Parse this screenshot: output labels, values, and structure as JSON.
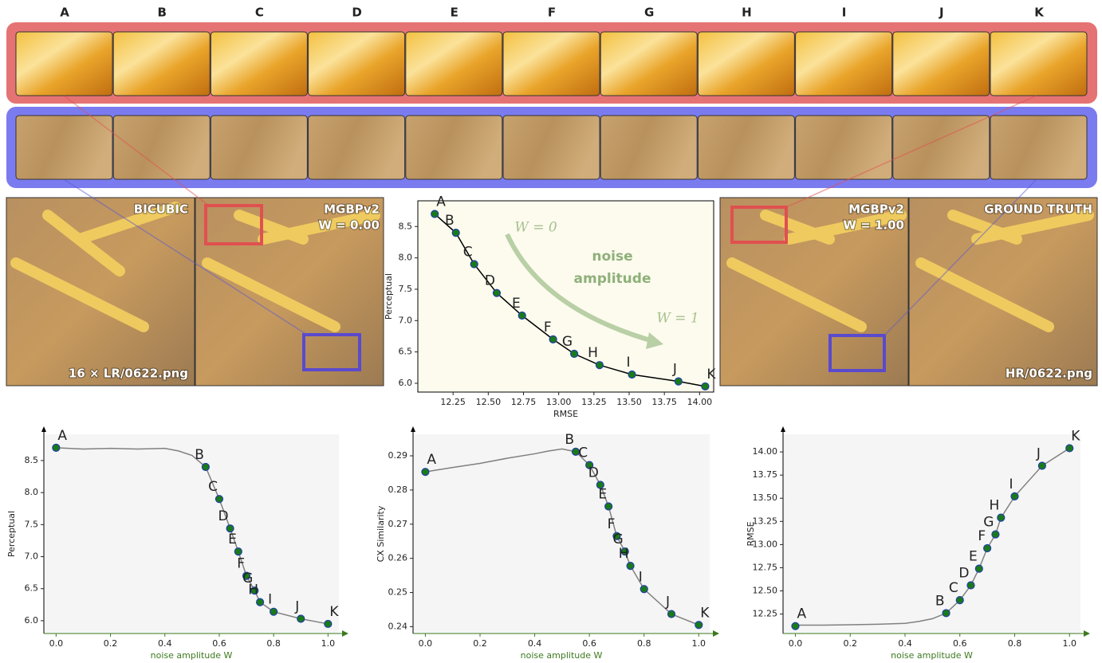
{
  "columns": [
    "A",
    "B",
    "C",
    "D",
    "E",
    "F",
    "G",
    "H",
    "I",
    "J",
    "K"
  ],
  "image_labels": {
    "bicubic": "BICUBIC",
    "lr_file": "16 × LR/0622.png",
    "mgbp_w0": [
      "MGBPv2",
      "W = 0.00"
    ],
    "mgbp_w1": [
      "MGBPv2",
      "W = 1.00"
    ],
    "ground_truth": "GROUND TRUTH",
    "hr_file": "HR/0622.png"
  },
  "chart_data": [
    {
      "type": "line",
      "xlabel": "RMSE",
      "ylabel": "Perceptual",
      "annotations": {
        "w0": "W = 0",
        "w1": "W = 1",
        "arrow_label": [
          "noise",
          "amplitude"
        ]
      },
      "x": [
        12.12,
        12.27,
        12.4,
        12.56,
        12.74,
        12.96,
        13.11,
        13.29,
        13.52,
        13.85,
        14.04
      ],
      "series": [
        {
          "values": [
            8.7,
            8.4,
            7.9,
            7.44,
            7.08,
            6.7,
            6.47,
            6.29,
            6.14,
            6.03,
            5.95
          ],
          "color": "#1a7a1a"
        }
      ],
      "point_labels": [
        "A",
        "B",
        "C",
        "D",
        "E",
        "F",
        "G",
        "H",
        "I",
        "J",
        "K"
      ],
      "line_color": "#000000",
      "xlim": [
        12.0,
        14.1
      ],
      "ylim": [
        5.86,
        8.91
      ],
      "xticks": [
        {
          "value": 12.25,
          "label": "12.25"
        },
        {
          "value": 12.5,
          "label": "12.50"
        },
        {
          "value": 12.75,
          "label": "12.75"
        },
        {
          "value": 13,
          "label": "13.00"
        },
        {
          "value": 13.25,
          "label": "13.25"
        },
        {
          "value": 13.5,
          "label": "13.50"
        },
        {
          "value": 13.75,
          "label": "13.75"
        },
        {
          "value": 14,
          "label": "14.00"
        }
      ],
      "yticks": [
        {
          "value": 6,
          "label": "6.0"
        },
        6.5,
        {
          "value": 7,
          "label": "7.0"
        },
        7.5,
        {
          "value": 8,
          "label": "8.0"
        },
        8.5
      ]
    },
    {
      "type": "line",
      "xlabel": "noise amplitude W",
      "ylabel": "Perceptual",
      "x": [
        0,
        0.55,
        0.6,
        0.64,
        0.67,
        0.7,
        0.73,
        0.75,
        0.8,
        0.9,
        1.0
      ],
      "series": [
        {
          "values": [
            8.7,
            8.4,
            7.9,
            7.44,
            7.08,
            6.7,
            6.47,
            6.29,
            6.14,
            6.03,
            5.95
          ],
          "color": "#1a7a1a"
        }
      ],
      "curve": {
        "x": [
          0,
          0.1,
          0.2,
          0.3,
          0.4,
          0.45,
          0.5,
          0.55,
          0.6,
          0.64,
          0.67,
          0.7,
          0.73,
          0.75,
          0.8,
          0.9,
          1.0
        ],
        "values": [
          8.7,
          8.68,
          8.69,
          8.68,
          8.69,
          8.65,
          8.58,
          8.4,
          7.9,
          7.44,
          7.08,
          6.7,
          6.47,
          6.29,
          6.14,
          6.03,
          5.95
        ],
        "color": "#808080"
      },
      "point_labels": [
        "A",
        "B",
        "C",
        "D",
        "E",
        "F",
        "G",
        "H",
        "I",
        "J",
        "K"
      ],
      "x_axis_color": "#3d7a1e",
      "xlim": [
        -0.045,
        1.04
      ],
      "ylim": [
        5.8,
        8.91
      ],
      "xticks": [
        {
          "value": 0,
          "label": "0.0"
        },
        0.2,
        0.4,
        0.6,
        0.8,
        {
          "value": 1,
          "label": "1.0"
        }
      ],
      "yticks": [
        {
          "value": 6,
          "label": "6.0"
        },
        6.5,
        {
          "value": 7,
          "label": "7.0"
        },
        7.5,
        {
          "value": 8,
          "label": "8.0"
        },
        8.5
      ]
    },
    {
      "type": "line",
      "xlabel": "noise amplitude W",
      "ylabel": "CX Similarity",
      "x": [
        0,
        0.55,
        0.6,
        0.64,
        0.67,
        0.7,
        0.73,
        0.75,
        0.8,
        0.9,
        1.0
      ],
      "series": [
        {
          "values": [
            0.2853,
            0.2912,
            0.2873,
            0.2815,
            0.2752,
            0.2665,
            0.262,
            0.2578,
            0.251,
            0.2437,
            0.2405
          ],
          "color": "#1a7a1a"
        }
      ],
      "curve": {
        "x": [
          0,
          0.1,
          0.2,
          0.3,
          0.4,
          0.45,
          0.5,
          0.55,
          0.6,
          0.64,
          0.67,
          0.7,
          0.73,
          0.75,
          0.8,
          0.9,
          1.0
        ],
        "values": [
          0.2853,
          0.2866,
          0.2878,
          0.2893,
          0.2906,
          0.2914,
          0.292,
          0.2912,
          0.2873,
          0.2815,
          0.2752,
          0.2665,
          0.262,
          0.2578,
          0.251,
          0.2437,
          0.2405
        ],
        "color": "#808080"
      },
      "point_labels": [
        "A",
        "B",
        "C",
        "D",
        "E",
        "F",
        "G",
        "H",
        "I",
        "J",
        "K"
      ],
      "x_axis_color": "#3d7a1e",
      "xlim": [
        -0.045,
        1.04
      ],
      "ylim": [
        0.238,
        0.2963
      ],
      "xticks": [
        {
          "value": 0,
          "label": "0.0"
        },
        0.2,
        0.4,
        0.6,
        0.8,
        {
          "value": 1,
          "label": "1.0"
        }
      ],
      "yticks": [
        0.24,
        0.25,
        0.26,
        0.27,
        0.28,
        0.29
      ]
    },
    {
      "type": "line",
      "xlabel": "noise amplitude W",
      "ylabel": "RMSE",
      "x": [
        0,
        0.55,
        0.6,
        0.64,
        0.67,
        0.7,
        0.73,
        0.75,
        0.8,
        0.9,
        1.0
      ],
      "series": [
        {
          "values": [
            12.12,
            12.26,
            12.4,
            12.56,
            12.74,
            12.96,
            13.11,
            13.29,
            13.52,
            13.85,
            14.04
          ],
          "color": "#1a7a1a"
        }
      ],
      "curve": {
        "x": [
          0,
          0.1,
          0.2,
          0.3,
          0.4,
          0.45,
          0.5,
          0.55,
          0.6,
          0.64,
          0.67,
          0.7,
          0.73,
          0.75,
          0.8,
          0.9,
          1.0
        ],
        "values": [
          12.13,
          12.13,
          12.135,
          12.14,
          12.15,
          12.17,
          12.2,
          12.26,
          12.4,
          12.56,
          12.74,
          12.96,
          13.11,
          13.29,
          13.52,
          13.85,
          14.04
        ],
        "color": "#808080"
      },
      "point_labels": [
        "A",
        "B",
        "C",
        "D",
        "E",
        "F",
        "G",
        "H",
        "I",
        "J",
        "K"
      ],
      "x_axis_color": "#3d7a1e",
      "xlim": [
        -0.045,
        1.04
      ],
      "ylim": [
        12.04,
        14.19
      ],
      "xticks": [
        {
          "value": 0,
          "label": "0.0"
        },
        0.2,
        0.4,
        0.6,
        0.8,
        {
          "value": 1,
          "label": "1.0"
        }
      ],
      "yticks": [
        12.25,
        {
          "value": 12.5,
          "label": "12.50"
        },
        12.75,
        {
          "value": 13,
          "label": "13.00"
        },
        13.25,
        {
          "value": 13.5,
          "label": "13.50"
        },
        13.75,
        {
          "value": 14,
          "label": "14.00"
        }
      ]
    }
  ]
}
